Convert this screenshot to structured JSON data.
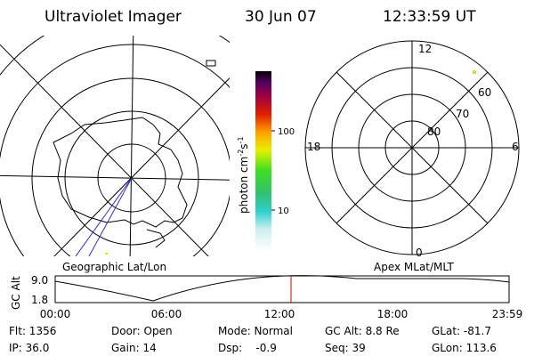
{
  "header": {
    "instrument": "Ultraviolet Imager",
    "date": "30 Jun 07",
    "time": "12:33:59 UT"
  },
  "left_plot": {
    "label": "Geographic Lat/Lon"
  },
  "right_plot": {
    "label": "Apex MLat/MLT",
    "mlt_labels": [
      "12",
      "18",
      "6",
      "0"
    ],
    "mlat_labels": [
      "80",
      "70",
      "60"
    ]
  },
  "colorbar": {
    "unit": [
      "photon cm",
      "-2",
      "s",
      "-1"
    ],
    "ticks": [
      "100",
      "10"
    ]
  },
  "altitude_plot": {
    "ylabel": "GC Alt",
    "yticks": [
      "9.0",
      "1.8"
    ],
    "xticks": [
      "00:00",
      "06:00",
      "12:00",
      "18:00",
      "23:59"
    ]
  },
  "info": [
    [
      "Flt: 1356",
      "Door: Open",
      "Mode: Normal",
      "GC Alt: 8.8 Re",
      "GLat: -81.7"
    ],
    [
      "IP: 36.0",
      "Gain: 14",
      "Dsp:    -0.9",
      "Seq: 39",
      "GLon: 113.6"
    ]
  ]
}
